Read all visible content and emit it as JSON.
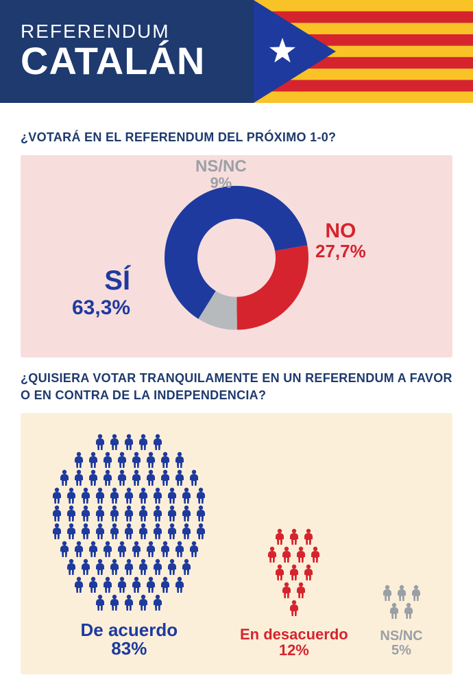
{
  "header": {
    "line1": "REFERENDUM",
    "line2": "CATALÁN",
    "bg_color": "#1e3a6e",
    "flag": {
      "stripe_yellow": "#f9c227",
      "stripe_red": "#d6242e",
      "triangle_blue": "#1e3a9e",
      "star_color": "#ffffff"
    }
  },
  "q1": {
    "question": "¿VOTARÁ EN EL REFERENDUM DEL PRÓXIMO 1-0?",
    "panel_bg": "#f7dedd",
    "donut": {
      "type": "donut",
      "size": 210,
      "thickness": 48,
      "segments": [
        {
          "key": "si",
          "label": "SÍ",
          "value": 63.3,
          "display": "63,3%",
          "color": "#1e3a9e"
        },
        {
          "key": "no",
          "label": "NO",
          "value": 27.7,
          "display": "27,7%",
          "color": "#d6242e"
        },
        {
          "key": "nsnc",
          "label": "NS/NC",
          "value": 9.0,
          "display": "9%",
          "color": "#b7babd"
        }
      ],
      "start_angle_deg": 122
    }
  },
  "q2": {
    "question": "¿QUISIERA VOTAR TRANQUILAMENTE EN UN REFERENDUM A FAVOR O EN CONTRA DE LA INDEPENDENCIA?",
    "panel_bg": "#fcefd9",
    "type": "pictogram",
    "icon_size": 20,
    "groups": [
      {
        "key": "acuerdo",
        "label": "De acuerdo",
        "value": 83,
        "display": "83%",
        "color": "#1e3a9e",
        "rows": [
          5,
          8,
          10,
          11,
          11,
          11,
          10,
          9,
          8,
          5
        ]
      },
      {
        "key": "desacuerdo",
        "label": "En desacuerdo",
        "value": 12,
        "display": "12%",
        "color": "#d6242e",
        "rows": [
          3,
          4,
          3,
          2,
          1
        ]
      },
      {
        "key": "nsnc",
        "label": "NS/NC",
        "value": 5,
        "display": "5%",
        "color": "#9aa0a6",
        "rows": [
          3,
          2
        ]
      }
    ]
  }
}
